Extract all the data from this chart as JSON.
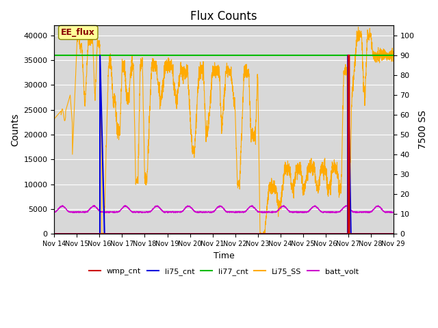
{
  "title": "Flux Counts",
  "xlabel": "Time",
  "ylabel_left": "Counts",
  "ylabel_right": "7500 SS",
  "annotation_text": "EE_flux",
  "xlim_days": [
    0,
    15
  ],
  "ylim_left": [
    0,
    42000
  ],
  "ylim_right": [
    0,
    105
  ],
  "yticks_left": [
    0,
    5000,
    10000,
    15000,
    20000,
    25000,
    30000,
    35000,
    40000
  ],
  "yticks_right": [
    0,
    10,
    20,
    30,
    40,
    50,
    60,
    70,
    80,
    90,
    100
  ],
  "xtick_labels": [
    "Nov 14",
    "Nov 15",
    "Nov 16",
    "Nov 17",
    "Nov 18",
    "Nov 19",
    "Nov 20",
    "Nov 21",
    "Nov 22",
    "Nov 23",
    "Nov 24",
    "Nov 25",
    "Nov 26",
    "Nov 27",
    "Nov 28",
    "Nov 29"
  ],
  "bg_color": "#d8d8d8",
  "grid_color": "#ffffff",
  "annotation_box_color": "#ffff99",
  "annotation_text_color": "#880000",
  "li77_cnt_level": 36000,
  "colors": {
    "wmp_cnt": "#cc0000",
    "li75_cnt": "#0000dd",
    "li77_cnt": "#00bb00",
    "Li75_SS": "#ffaa00",
    "batt_volt": "#cc00cc"
  }
}
